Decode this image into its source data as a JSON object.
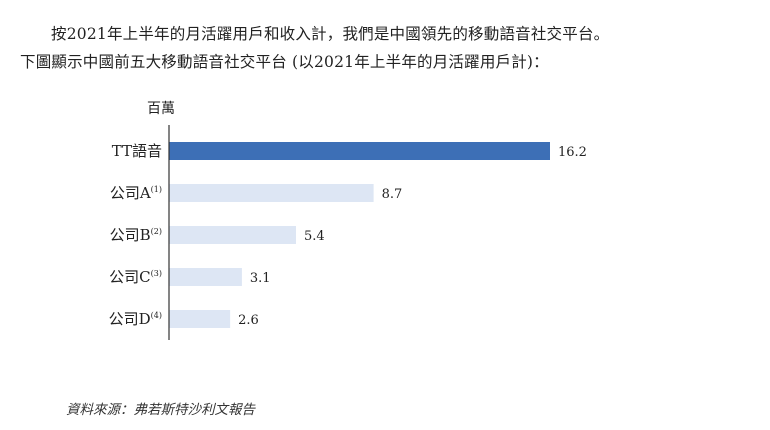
{
  "text": {
    "line1": "按2021年上半年的月活躍用戶和收入計，我們是中國領先的移動語音社交平台。",
    "line2": "下圖顯示中國前五大移動語音社交平台 (以2021年上半年的月活躍用戶計)：",
    "source": "資料來源：弗若斯特沙利文報告"
  },
  "chart_data": {
    "type": "bar",
    "orientation": "horizontal",
    "unit_label": "百萬",
    "categories": [
      {
        "name": "TT語音",
        "note": ""
      },
      {
        "name": "公司A",
        "note": "(1)"
      },
      {
        "name": "公司B",
        "note": "(2)"
      },
      {
        "name": "公司C",
        "note": "(3)"
      },
      {
        "name": "公司D",
        "note": "(4)"
      }
    ],
    "values": [
      16.2,
      8.7,
      5.4,
      3.1,
      2.6
    ],
    "value_labels": [
      "16.2",
      "8.7",
      "5.4",
      "3.1",
      "2.6"
    ],
    "colors": {
      "highlight": "#3d6fb6",
      "other": "#dde6f4",
      "axis": "#333333"
    }
  }
}
